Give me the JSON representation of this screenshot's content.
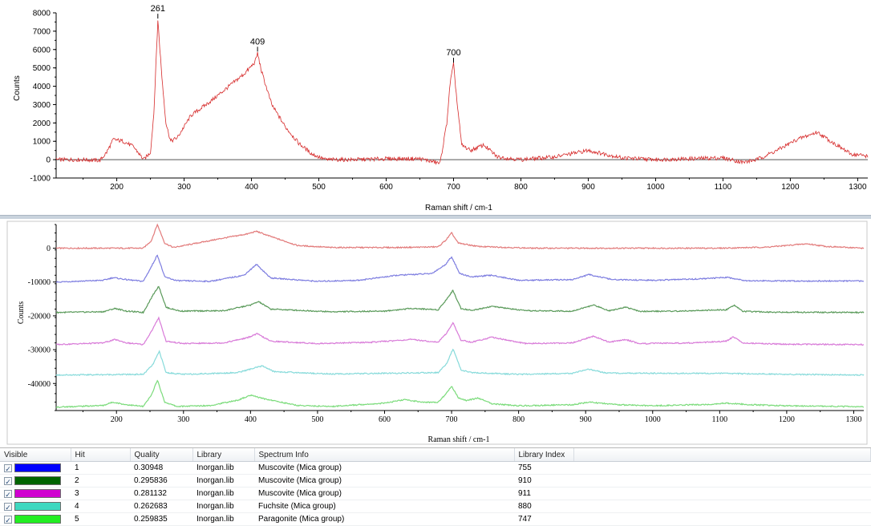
{
  "top_chart": {
    "ylabel": "Counts",
    "xlabel": "Raman shift / cm-1",
    "line_color": "#d62a2a",
    "peak_labels": [
      "261",
      "409",
      "700"
    ],
    "y_ticks": [
      "8000",
      "7000",
      "6000",
      "5000",
      "4000",
      "3000",
      "2000",
      "1000",
      "0",
      "-1000"
    ],
    "x_ticks": [
      "200",
      "300",
      "400",
      "500",
      "600",
      "700",
      "800",
      "900",
      "1000",
      "1100",
      "1200",
      "1300"
    ]
  },
  "bottom_chart": {
    "ylabel": "Counts",
    "xlabel": "Raman shift / cm-1",
    "y_ticks": [
      "0",
      "-10000",
      "-20000",
      "-30000",
      "-40000"
    ],
    "x_ticks": [
      "200",
      "300",
      "400",
      "500",
      "600",
      "700",
      "800",
      "900",
      "1000",
      "1100",
      "1200",
      "1300"
    ]
  },
  "results_table": {
    "headers": [
      "Visible",
      "Hit",
      "Quality",
      "Library",
      "Spectrum Info",
      "Library Index"
    ],
    "rows": [
      {
        "checked": "✓",
        "color": "#0000ff",
        "hit": "1",
        "quality": "0.30948",
        "library": "Inorgan.lib",
        "info": "Muscovite (Mica group)",
        "index": "755"
      },
      {
        "checked": "✓",
        "color": "#006400",
        "hit": "2",
        "quality": "0.295836",
        "library": "Inorgan.lib",
        "info": "Muscovite (Mica group)",
        "index": "910"
      },
      {
        "checked": "✓",
        "color": "#d000d0",
        "hit": "3",
        "quality": "0.281132",
        "library": "Inorgan.lib",
        "info": "Muscovite (Mica group)",
        "index": "911"
      },
      {
        "checked": "✓",
        "color": "#3ed8c0",
        "hit": "4",
        "quality": "0.262683",
        "library": "Inorgan.lib",
        "info": "Fuchsite (Mica group)",
        "index": "880"
      },
      {
        "checked": "✓",
        "color": "#22ee22",
        "hit": "5",
        "quality": "0.259835",
        "library": "Inorgan.lib",
        "info": "Paragonite (Mica group)",
        "index": "747"
      }
    ]
  },
  "chart_data": [
    {
      "type": "line",
      "xlabel": "Raman shift / cm-1",
      "ylabel": "Counts",
      "xlim": [
        110,
        1315
      ],
      "ylim": [
        -1000,
        8000
      ],
      "annotations": [
        {
          "x": 261,
          "y": 7600,
          "text": "261"
        },
        {
          "x": 409,
          "y": 5800,
          "text": "409"
        },
        {
          "x": 700,
          "y": 5200,
          "text": "700"
        }
      ],
      "series": [
        {
          "color": "#d62a2a",
          "x": [
            110,
            150,
            175,
            185,
            195,
            210,
            225,
            240,
            250,
            255,
            261,
            267,
            273,
            280,
            290,
            310,
            340,
            370,
            390,
            405,
            409,
            415,
            430,
            450,
            470,
            490,
            510,
            550,
            600,
            650,
            680,
            690,
            695,
            700,
            705,
            712,
            725,
            745,
            765,
            800,
            850,
            900,
            950,
            1000,
            1050,
            1100,
            1130,
            1150,
            1180,
            1210,
            1240,
            1260,
            1290,
            1315
          ],
          "y": [
            0,
            0,
            -50,
            400,
            1100,
            1000,
            700,
            0,
            400,
            2500,
            7600,
            4500,
            2000,
            1000,
            1200,
            2400,
            3200,
            4100,
            4700,
            5300,
            5800,
            4800,
            3000,
            1800,
            900,
            300,
            0,
            0,
            50,
            50,
            -200,
            2000,
            4200,
            5200,
            3200,
            800,
            500,
            800,
            150,
            0,
            150,
            500,
            100,
            0,
            50,
            100,
            -150,
            0,
            500,
            1100,
            1500,
            1000,
            300,
            200
          ]
        }
      ]
    },
    {
      "type": "line",
      "xlabel": "Raman shift / cm-1",
      "ylabel": "Counts",
      "xlim": [
        110,
        1315
      ],
      "ylim": [
        -48000,
        7000
      ],
      "series": [
        {
          "color": "#e27a7a",
          "x": [
            110,
            240,
            252,
            261,
            272,
            285,
            320,
            360,
            395,
            409,
            425,
            470,
            520,
            620,
            680,
            692,
            700,
            710,
            740,
            820,
            950,
            1100,
            1170,
            1200,
            1230,
            1260,
            1315
          ],
          "y": [
            0,
            0,
            2200,
            7000,
            1500,
            200,
            1500,
            3000,
            4200,
            5000,
            3800,
            800,
            200,
            200,
            400,
            2500,
            4500,
            1500,
            500,
            0,
            0,
            0,
            300,
            800,
            1300,
            500,
            0
          ]
        },
        {
          "color": "#7d7de0",
          "x": [
            110,
            180,
            195,
            215,
            240,
            252,
            261,
            272,
            290,
            340,
            390,
            409,
            430,
            500,
            560,
            620,
            670,
            690,
            700,
            712,
            730,
            760,
            800,
            880,
            905,
            940,
            1000,
            1080,
            1110,
            1140,
            1200,
            1315
          ],
          "y": [
            -10000,
            -9500,
            -8700,
            -9300,
            -9800,
            -5500,
            -2000,
            -8500,
            -9600,
            -9800,
            -8000,
            -4800,
            -8800,
            -9800,
            -9500,
            -8000,
            -7500,
            -5000,
            -2500,
            -7500,
            -8500,
            -8000,
            -9500,
            -9300,
            -7800,
            -9300,
            -9500,
            -9000,
            -8600,
            -9600,
            -9700,
            -9700
          ]
        },
        {
          "color": "#5a9a5a",
          "x": [
            110,
            180,
            198,
            215,
            240,
            254,
            263,
            274,
            295,
            360,
            400,
            412,
            430,
            520,
            600,
            640,
            680,
            693,
            702,
            714,
            730,
            760,
            810,
            880,
            912,
            935,
            960,
            980,
            1040,
            1110,
            1122,
            1135,
            1180,
            1315
          ],
          "y": [
            -19000,
            -18800,
            -17800,
            -18600,
            -19000,
            -14000,
            -11200,
            -17500,
            -18600,
            -18500,
            -16800,
            -15800,
            -18000,
            -18800,
            -18600,
            -17800,
            -18200,
            -15000,
            -12500,
            -17800,
            -18400,
            -17200,
            -18500,
            -18600,
            -16800,
            -18500,
            -17400,
            -18700,
            -18600,
            -18200,
            -16800,
            -18700,
            -18900,
            -19000
          ]
        },
        {
          "color": "#d87ad8",
          "x": [
            110,
            180,
            198,
            215,
            240,
            254,
            263,
            274,
            300,
            360,
            395,
            410,
            430,
            500,
            580,
            640,
            680,
            693,
            702,
            714,
            730,
            760,
            810,
            880,
            912,
            935,
            960,
            980,
            1060,
            1110,
            1120,
            1135,
            1200,
            1315
          ],
          "y": [
            -28500,
            -28000,
            -27000,
            -28000,
            -28500,
            -24000,
            -20500,
            -27500,
            -28200,
            -28000,
            -26500,
            -25300,
            -27500,
            -28200,
            -27800,
            -27000,
            -27800,
            -25000,
            -22000,
            -27200,
            -27800,
            -26300,
            -28200,
            -28000,
            -26000,
            -27800,
            -27000,
            -28200,
            -28000,
            -27500,
            -26200,
            -28000,
            -28400,
            -28500
          ]
        },
        {
          "color": "#86dada",
          "x": [
            110,
            240,
            254,
            264,
            274,
            300,
            380,
            405,
            418,
            435,
            520,
            600,
            680,
            693,
            702,
            714,
            730,
            800,
            880,
            905,
            930,
            1000,
            1100,
            1200,
            1315
          ],
          "y": [
            -37500,
            -37300,
            -34500,
            -30500,
            -36800,
            -37300,
            -36800,
            -35500,
            -34800,
            -36500,
            -37200,
            -37000,
            -36800,
            -34000,
            -29800,
            -36000,
            -36800,
            -37300,
            -37000,
            -35800,
            -36900,
            -37000,
            -37000,
            -37300,
            -37500
          ]
        },
        {
          "color": "#7adb7a",
          "x": [
            110,
            180,
            195,
            212,
            240,
            252,
            261,
            272,
            290,
            340,
            380,
            400,
            420,
            470,
            520,
            600,
            630,
            660,
            680,
            692,
            700,
            710,
            722,
            740,
            760,
            800,
            880,
            905,
            950,
            1000,
            1080,
            1110,
            1150,
            1200,
            1315
          ],
          "y": [
            -47000,
            -46500,
            -45500,
            -46200,
            -46800,
            -43500,
            -39000,
            -45500,
            -46800,
            -46500,
            -45000,
            -43500,
            -44500,
            -46500,
            -46800,
            -45800,
            -44800,
            -45600,
            -45500,
            -43000,
            -40800,
            -44200,
            -45000,
            -44300,
            -46000,
            -46600,
            -46300,
            -45500,
            -46300,
            -46600,
            -46200,
            -45800,
            -46300,
            -46600,
            -46900
          ]
        }
      ]
    }
  ]
}
